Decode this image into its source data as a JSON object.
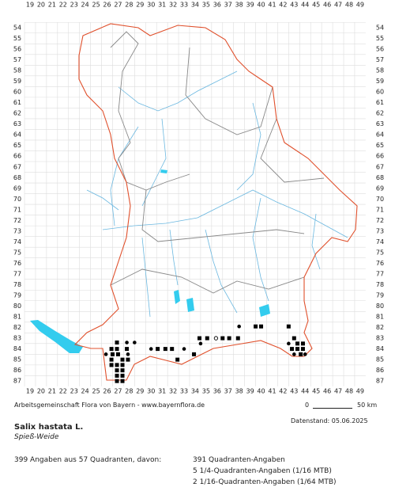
{
  "grid": {
    "columns": [
      19,
      20,
      21,
      22,
      23,
      24,
      25,
      26,
      27,
      28,
      29,
      30,
      31,
      32,
      33,
      34,
      35,
      36,
      37,
      38,
      39,
      40,
      41,
      42,
      43,
      44,
      45,
      46,
      47,
      48,
      49
    ],
    "rows": [
      54,
      55,
      56,
      57,
      58,
      59,
      60,
      61,
      62,
      63,
      64,
      65,
      66,
      67,
      68,
      69,
      70,
      71,
      72,
      73,
      74,
      75,
      76,
      77,
      78,
      79,
      80,
      81,
      82,
      83,
      84,
      85,
      86,
      87
    ]
  },
  "markers": [
    [
      38.0,
      81.9,
      "dot"
    ],
    [
      39.5,
      81.9,
      "square"
    ],
    [
      40.0,
      81.9,
      "square"
    ],
    [
      42.5,
      81.9,
      "square"
    ],
    [
      34.4,
      83.0,
      "square"
    ],
    [
      35.1,
      83.0,
      "square"
    ],
    [
      35.9,
      83.0,
      "open"
    ],
    [
      36.5,
      83.0,
      "square"
    ],
    [
      37.1,
      83.0,
      "square"
    ],
    [
      37.9,
      83.0,
      "square"
    ],
    [
      43.0,
      83.0,
      "square"
    ],
    [
      27.8,
      83.4,
      "dot"
    ],
    [
      28.5,
      83.4,
      "dot"
    ],
    [
      26.9,
      83.4,
      "square"
    ],
    [
      34.5,
      83.5,
      "dot"
    ],
    [
      42.5,
      83.5,
      "dot"
    ],
    [
      43.3,
      83.5,
      "square"
    ],
    [
      43.8,
      83.5,
      "square"
    ],
    [
      26.9,
      84.0,
      "square"
    ],
    [
      26.4,
      84.0,
      "square"
    ],
    [
      27.8,
      84.0,
      "square"
    ],
    [
      30.0,
      84.0,
      "dot"
    ],
    [
      30.6,
      84.0,
      "square"
    ],
    [
      31.3,
      84.0,
      "square"
    ],
    [
      31.9,
      84.0,
      "square"
    ],
    [
      33.0,
      84.0,
      "dot"
    ],
    [
      43.3,
      84.0,
      "square"
    ],
    [
      43.8,
      84.0,
      "square"
    ],
    [
      42.8,
      84.0,
      "square"
    ],
    [
      26.5,
      84.5,
      "square"
    ],
    [
      27.0,
      84.5,
      "square"
    ],
    [
      27.9,
      84.5,
      "dot"
    ],
    [
      25.9,
      84.5,
      "dot"
    ],
    [
      33.9,
      84.5,
      "square"
    ],
    [
      43.0,
      84.5,
      "dot"
    ],
    [
      43.6,
      84.5,
      "square"
    ],
    [
      44.0,
      84.5,
      "dot"
    ],
    [
      26.4,
      85.0,
      "square"
    ],
    [
      27.4,
      85.0,
      "square"
    ],
    [
      27.9,
      85.0,
      "square"
    ],
    [
      32.4,
      85.0,
      "square"
    ],
    [
      26.9,
      85.5,
      "square"
    ],
    [
      27.4,
      85.5,
      "square"
    ],
    [
      26.4,
      85.5,
      "square"
    ],
    [
      26.9,
      86.0,
      "square"
    ],
    [
      27.4,
      86.0,
      "square"
    ],
    [
      26.9,
      86.5,
      "square"
    ],
    [
      27.4,
      86.5,
      "square"
    ],
    [
      26.9,
      87.0,
      "square"
    ],
    [
      27.4,
      87.0,
      "square"
    ]
  ],
  "credit": "Arbeitsgemeinschaft Flora von Bayern - www.bayernflora.de",
  "scale": {
    "start": "0",
    "end": "50 km"
  },
  "date": "Datenstand: 05.06.2025",
  "species": {
    "name": "Salix hastata L.",
    "common": "Spieß-Weide"
  },
  "stats": {
    "summary": "399 Angaben aus 57 Quadranten, davon:",
    "lines": [
      "391 Quadranten-Angaben",
      "5 1/4-Quadranten-Angaben (1/16 MTB)",
      "2 1/16-Quadranten-Angaben (1/64 MTB)"
    ]
  }
}
